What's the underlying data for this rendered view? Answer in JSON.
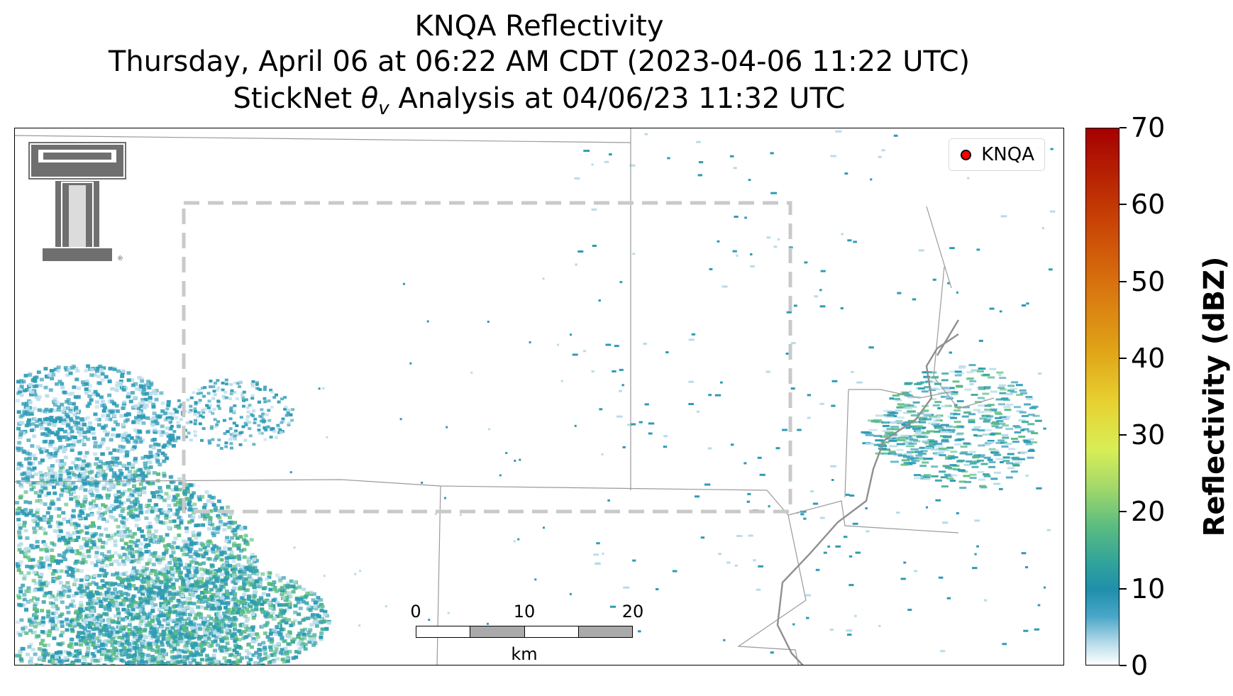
{
  "title": {
    "line1": "KNQA Reflectivity",
    "line2": "Thursday, April 06 at 06:22 AM CDT (2023-04-06 11:22 UTC)",
    "line3_prefix": "StickNet",
    "line3_symbol": "θ",
    "line3_subscript": "v",
    "line3_suffix": "Analysis at 04/06/23 11:32 UTC"
  },
  "legend": {
    "label": "KNQA",
    "marker_color": "#ff0000"
  },
  "scalebar": {
    "ticks": [
      "0",
      "10",
      "20"
    ],
    "unit": "km"
  },
  "colorbar": {
    "label": "Reflectivity (dBZ)",
    "ticks": [
      "0",
      "10",
      "20",
      "30",
      "40",
      "50",
      "60",
      "70"
    ],
    "range": [
      0,
      70
    ]
  },
  "logo": {
    "name": "Texas Tech Double T"
  },
  "colors": {
    "low": "#b7dcea",
    "mid": "#2e9bb5",
    "high": "#5cbd7f",
    "boundary": "#999999",
    "analysis_box": "#cccccc"
  }
}
